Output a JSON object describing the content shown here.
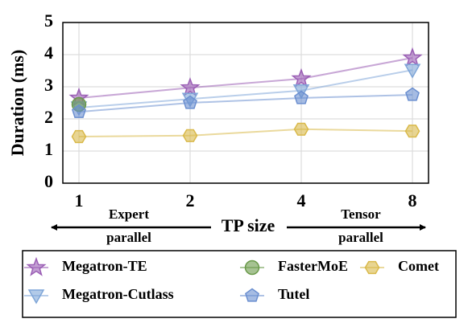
{
  "chart_data": {
    "type": "line",
    "y_label": "Duration (ms)",
    "x_label": "TP size",
    "annotations": [
      [
        "Expert",
        "parallel"
      ],
      [
        "Tensor",
        "parallel"
      ]
    ],
    "categories": [
      "1",
      "2",
      "4",
      "8"
    ],
    "ylim": [
      0,
      5
    ],
    "yticks": [
      0,
      1,
      2,
      3,
      4,
      5
    ],
    "grid": true,
    "series": [
      {
        "name": "Megatron-TE",
        "color": "#9b5fb5",
        "marker": "star",
        "values": [
          2.65,
          2.97,
          3.25,
          3.9
        ]
      },
      {
        "name": "Megatron-Cutlass",
        "color": "#7fa6d8",
        "marker": "triangle-down",
        "values": [
          2.35,
          2.62,
          2.88,
          3.52
        ]
      },
      {
        "name": "FasterMoE",
        "color": "#6a9a4a",
        "marker": "circle",
        "values": [
          2.45,
          null,
          null,
          null
        ]
      },
      {
        "name": "Tutel",
        "color": "#6b8fd0",
        "marker": "pentagon",
        "values": [
          2.22,
          2.5,
          2.65,
          2.75
        ]
      },
      {
        "name": "Comet",
        "color": "#d9b94a",
        "marker": "hexagon",
        "values": [
          1.45,
          1.48,
          1.68,
          1.62
        ]
      }
    ]
  }
}
